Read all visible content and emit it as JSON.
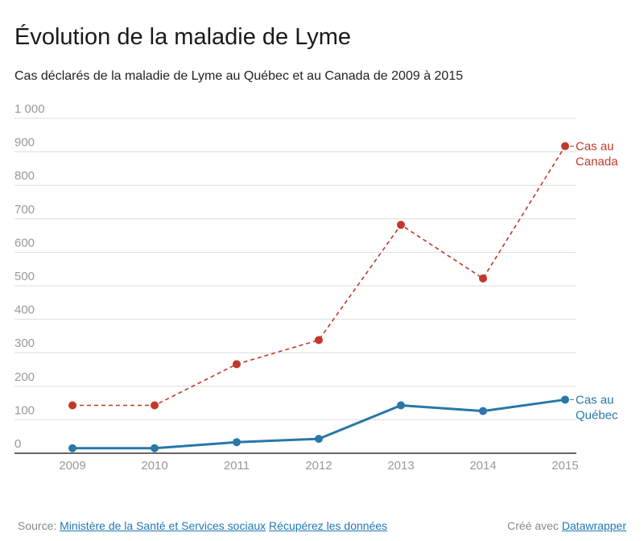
{
  "title": "Évolution de la maladie de Lyme",
  "subtitle": "Cas déclarés de la maladie de Lyme au Québec et au Canada de 2009 à 2015",
  "footer": {
    "source_prefix": "Source:",
    "source_link": "Ministère de la Santé et Services sociaux",
    "data_link": "Récupérez les données",
    "credit_prefix": "Créé avec",
    "credit_link": "Datawrapper"
  },
  "colors": {
    "canada": "#c0392b",
    "quebec": "#2877a8",
    "grid": "#dddddd",
    "axis": "#333333",
    "tick": "#999999"
  },
  "chart_data": {
    "type": "line",
    "x": [
      "2009",
      "2010",
      "2011",
      "2012",
      "2013",
      "2014",
      "2015"
    ],
    "ylim": [
      0,
      1000
    ],
    "yticks": [
      0,
      100,
      200,
      300,
      400,
      500,
      600,
      700,
      800,
      900,
      1000
    ],
    "ytick_labels": [
      "0",
      "100",
      "200",
      "300",
      "400",
      "500",
      "600",
      "700",
      "800",
      "900",
      "1 000"
    ],
    "grid": true,
    "series": [
      {
        "name": "Cas au Canada",
        "label_lines": [
          "Cas au",
          "Canada"
        ],
        "style": "dashed",
        "color": "#c0392b",
        "values": [
          143,
          143,
          266,
          338,
          682,
          522,
          917
        ]
      },
      {
        "name": "Cas au Québec",
        "label_lines": [
          "Cas au",
          "Québec"
        ],
        "style": "solid",
        "color": "#2877a8",
        "values": [
          15,
          15,
          33,
          43,
          143,
          126,
          160
        ]
      }
    ]
  }
}
